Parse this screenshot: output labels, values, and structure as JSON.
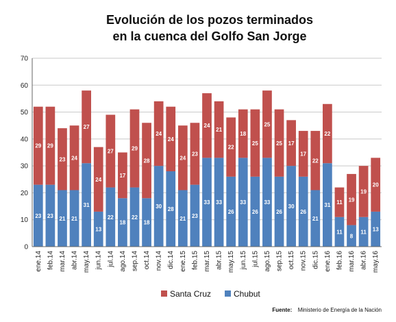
{
  "chart_data": {
    "type": "bar",
    "stacked": true,
    "title_lines": [
      "Evolución de los pozos terminados",
      "en la cuenca del Golfo San Jorge"
    ],
    "categories": [
      "ene.14",
      "feb.14",
      "mar.14",
      "abr.14",
      "may.14",
      "jun.14",
      "jul.14",
      "ago.14",
      "sep.14",
      "oct.14",
      "nov.14",
      "dic.14",
      "ene.15",
      "feb.15",
      "mar.15",
      "abr.15",
      "may.15",
      "jun.15",
      "jul.15",
      "ago.15",
      "sep.15",
      "oct.15",
      "nov.15",
      "dic.15",
      "ene.16",
      "feb.16",
      "mar.16",
      "abr.16",
      "may.16"
    ],
    "series": [
      {
        "name": "Chubut",
        "color": "#4f81bd",
        "values": [
          23,
          23,
          21,
          21,
          31,
          13,
          22,
          18,
          22,
          18,
          30,
          28,
          21,
          23,
          33,
          33,
          26,
          33,
          26,
          33,
          26,
          30,
          26,
          21,
          31,
          11,
          8,
          11,
          13
        ]
      },
      {
        "name": "Santa Cruz",
        "color": "#c0504d",
        "values": [
          29,
          29,
          23,
          24,
          27,
          24,
          27,
          17,
          29,
          28,
          24,
          24,
          24,
          23,
          24,
          21,
          22,
          18,
          25,
          25,
          25,
          17,
          17,
          22,
          22,
          11,
          19,
          19,
          20
        ]
      }
    ],
    "yticks": [
      "0",
      "10",
      "20",
      "30",
      "40",
      "50",
      "60",
      "70"
    ],
    "ylim": [
      0,
      70
    ],
    "grid": true,
    "legend_order": [
      "Santa Cruz",
      "Chubut"
    ],
    "legend_position": "bottom",
    "source_label": "Fuente:",
    "source_text": "Ministerio de Energía de la Nación"
  }
}
